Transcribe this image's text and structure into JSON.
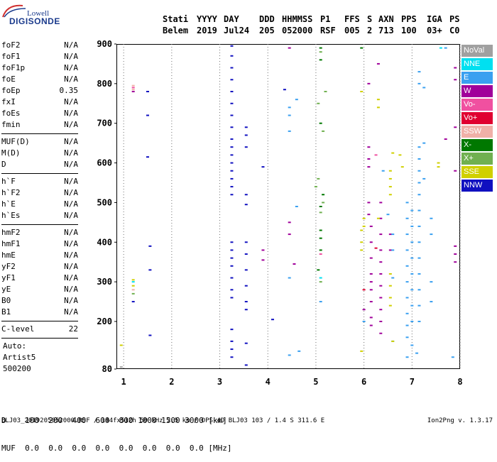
{
  "logo": {
    "line1": "Lowell",
    "line2": "DIGISONDE"
  },
  "header": {
    "labels": [
      "Stati",
      "YYYY",
      "DAY",
      "DDD",
      "HHMMSS",
      "P1",
      "FFS",
      "S",
      "AXN",
      "PPS",
      "IGA",
      "PS"
    ],
    "values": [
      "Belem",
      "2019",
      "Jul24",
      "205",
      "052000",
      "RSF",
      "005",
      "2",
      "713",
      "100",
      "03+",
      "C0"
    ]
  },
  "params_group1": [
    {
      "label": "foF2",
      "value": "N/A"
    },
    {
      "label": "foF1",
      "value": "N/A"
    },
    {
      "label": "foF1p",
      "value": "N/A"
    },
    {
      "label": "foE",
      "value": "N/A"
    },
    {
      "label": "foEp",
      "value": "0.35"
    },
    {
      "label": "fxI",
      "value": "N/A"
    },
    {
      "label": "foEs",
      "value": "N/A"
    },
    {
      "label": "fmin",
      "value": "N/A"
    }
  ],
  "params_group2": [
    {
      "label": "MUF(D)",
      "value": "N/A"
    },
    {
      "label": "M(D)",
      "value": "N/A"
    },
    {
      "label": "D",
      "value": "N/A"
    }
  ],
  "params_group3": [
    {
      "label": "h`F",
      "value": "N/A"
    },
    {
      "label": "h`F2",
      "value": "N/A"
    },
    {
      "label": "h`E",
      "value": "N/A"
    },
    {
      "label": "h`Es",
      "value": "N/A"
    }
  ],
  "params_group4": [
    {
      "label": "hmF2",
      "value": "N/A"
    },
    {
      "label": "hmF1",
      "value": "N/A"
    },
    {
      "label": "hmE",
      "value": "N/A"
    },
    {
      "label": "yF2",
      "value": "N/A"
    },
    {
      "label": "yF1",
      "value": "N/A"
    },
    {
      "label": "yE",
      "value": "N/A"
    },
    {
      "label": "B0",
      "value": "N/A"
    },
    {
      "label": "B1",
      "value": "N/A"
    }
  ],
  "clevel": {
    "label": "C-level",
    "value": "22"
  },
  "auto": {
    "line1": "Auto:",
    "line2": "Artist5",
    "line3": "500200"
  },
  "muf_table": {
    "d_label": "D",
    "d_values": "100  200  400  600  800 1000 1500 3000 [km]",
    "muf_label": "MUF",
    "muf_values": "0.0  0.0  0.0  0.0  0.0  0.0  0.0  0.0 [MHz]"
  },
  "footer": {
    "left": "BLJ03_2019205052000.RSF / 144fx512h 50 kHz 2.5 km / DPS-4D BLJ03 103 / 1.4 S 311.6 E",
    "right": "Ion2Png v. 1.3.17"
  },
  "legend": [
    {
      "label": "NoVal",
      "color": "#a0a0a0"
    },
    {
      "label": "NNE",
      "color": "#00e0f0"
    },
    {
      "label": "E",
      "color": "#3aa0f0"
    },
    {
      "label": "W",
      "color": "#a0009a"
    },
    {
      "label": "Vo-",
      "color": "#f050a0"
    },
    {
      "label": "Vo+",
      "color": "#e00030"
    },
    {
      "label": "SSW",
      "color": "#f0b0a8"
    },
    {
      "label": "X-",
      "color": "#007800"
    },
    {
      "label": "X+",
      "color": "#70b050"
    },
    {
      "label": "SSE",
      "color": "#d0d000"
    },
    {
      "label": "NNW",
      "color": "#1010c0"
    }
  ],
  "chart_data": {
    "type": "scatter",
    "title": "",
    "xlabel": "",
    "ylabel": "",
    "xlim": [
      0.85,
      8.0
    ],
    "ylim": [
      80,
      900
    ],
    "x_ticks": [
      1,
      2,
      3,
      4,
      5,
      6,
      7,
      8
    ],
    "y_ticks": [
      80,
      200,
      300,
      400,
      500,
      600,
      700,
      800,
      900
    ],
    "grid": "vertical dotted at integer MHz",
    "legend_position": "right",
    "series": [
      {
        "name": "NNW",
        "color": "#1010c0",
        "points": [
          [
            3.25,
            895
          ],
          [
            3.25,
            870
          ],
          [
            3.25,
            840
          ],
          [
            3.25,
            810
          ],
          [
            3.25,
            780
          ],
          [
            3.25,
            750
          ],
          [
            3.25,
            720
          ],
          [
            3.25,
            690
          ],
          [
            3.25,
            660
          ],
          [
            3.25,
            640
          ],
          [
            3.25,
            620
          ],
          [
            3.25,
            600
          ],
          [
            3.25,
            580
          ],
          [
            3.25,
            560
          ],
          [
            3.25,
            540
          ],
          [
            3.25,
            520
          ],
          [
            3.25,
            400
          ],
          [
            3.25,
            380
          ],
          [
            3.25,
            360
          ],
          [
            3.25,
            340
          ],
          [
            3.25,
            310
          ],
          [
            3.25,
            280
          ],
          [
            3.25,
            260
          ],
          [
            3.25,
            180
          ],
          [
            3.25,
            150
          ],
          [
            3.25,
            130
          ],
          [
            3.25,
            110
          ],
          [
            3.55,
            690
          ],
          [
            3.55,
            670
          ],
          [
            3.55,
            640
          ],
          [
            3.55,
            520
          ],
          [
            3.55,
            495
          ],
          [
            3.55,
            400
          ],
          [
            3.55,
            370
          ],
          [
            3.55,
            330
          ],
          [
            3.55,
            290
          ],
          [
            3.55,
            250
          ],
          [
            3.55,
            230
          ],
          [
            3.55,
            145
          ],
          [
            3.9,
            590
          ],
          [
            4.1,
            205
          ],
          [
            4.35,
            785
          ],
          [
            1.5,
            780
          ],
          [
            1.5,
            720
          ],
          [
            1.5,
            615
          ],
          [
            1.55,
            390
          ],
          [
            1.55,
            330
          ],
          [
            1.55,
            165
          ],
          [
            1.2,
            250
          ],
          [
            3.55,
            90
          ]
        ]
      },
      {
        "name": "W",
        "color": "#a0009a",
        "points": [
          [
            4.45,
            890
          ],
          [
            3.9,
            380
          ],
          [
            3.9,
            355
          ],
          [
            4.45,
            450
          ],
          [
            4.45,
            420
          ],
          [
            4.55,
            345
          ],
          [
            6.1,
            640
          ],
          [
            6.1,
            610
          ],
          [
            6.1,
            590
          ],
          [
            6.1,
            500
          ],
          [
            6.1,
            470
          ],
          [
            6.15,
            440
          ],
          [
            6.15,
            400
          ],
          [
            6.15,
            360
          ],
          [
            6.15,
            320
          ],
          [
            6.15,
            300
          ],
          [
            6.15,
            280
          ],
          [
            6.15,
            250
          ],
          [
            6.15,
            210
          ],
          [
            6.15,
            190
          ],
          [
            6.35,
            500
          ],
          [
            6.35,
            460
          ],
          [
            6.35,
            420
          ],
          [
            6.35,
            380
          ],
          [
            6.35,
            350
          ],
          [
            6.35,
            320
          ],
          [
            6.35,
            290
          ],
          [
            6.35,
            260
          ],
          [
            6.35,
            230
          ],
          [
            6.35,
            200
          ],
          [
            6.35,
            170
          ],
          [
            6.55,
            420
          ],
          [
            6.55,
            380
          ],
          [
            6.3,
            850
          ],
          [
            6.1,
            800
          ],
          [
            7.7,
            660
          ],
          [
            7.9,
            840
          ],
          [
            7.9,
            810
          ],
          [
            7.9,
            690
          ],
          [
            7.9,
            580
          ],
          [
            7.9,
            390
          ],
          [
            7.9,
            370
          ],
          [
            7.9,
            350
          ],
          [
            1.2,
            780
          ],
          [
            6.0,
            230
          ]
        ]
      },
      {
        "name": "E",
        "color": "#3aa0f0",
        "points": [
          [
            4.45,
            740
          ],
          [
            4.45,
            720
          ],
          [
            4.45,
            680
          ],
          [
            4.6,
            760
          ],
          [
            4.6,
            490
          ],
          [
            4.45,
            310
          ],
          [
            4.45,
            115
          ],
          [
            4.65,
            125
          ],
          [
            6.0,
            200
          ],
          [
            6.4,
            580
          ],
          [
            6.5,
            470
          ],
          [
            6.6,
            420
          ],
          [
            6.6,
            380
          ],
          [
            6.9,
            500
          ],
          [
            6.9,
            460
          ],
          [
            6.9,
            420
          ],
          [
            6.9,
            380
          ],
          [
            6.9,
            340
          ],
          [
            6.9,
            300
          ],
          [
            6.9,
            260
          ],
          [
            6.9,
            220
          ],
          [
            6.9,
            190
          ],
          [
            6.9,
            160
          ],
          [
            6.9,
            110
          ],
          [
            7.0,
            480
          ],
          [
            7.0,
            440
          ],
          [
            7.0,
            400
          ],
          [
            7.0,
            360
          ],
          [
            7.0,
            320
          ],
          [
            7.0,
            280
          ],
          [
            7.0,
            240
          ],
          [
            7.0,
            200
          ],
          [
            7.0,
            140
          ],
          [
            7.15,
            830
          ],
          [
            7.15,
            800
          ],
          [
            7.15,
            640
          ],
          [
            7.15,
            610
          ],
          [
            7.15,
            580
          ],
          [
            7.15,
            550
          ],
          [
            7.15,
            520
          ],
          [
            7.15,
            480
          ],
          [
            7.15,
            440
          ],
          [
            7.15,
            400
          ],
          [
            7.15,
            360
          ],
          [
            7.15,
            320
          ],
          [
            7.15,
            280
          ],
          [
            7.15,
            240
          ],
          [
            7.15,
            200
          ],
          [
            7.25,
            790
          ],
          [
            7.25,
            650
          ],
          [
            7.25,
            560
          ],
          [
            7.4,
            460
          ],
          [
            7.4,
            420
          ],
          [
            7.4,
            300
          ],
          [
            7.4,
            250
          ],
          [
            6.6,
            310
          ],
          [
            6.6,
            150
          ],
          [
            5.1,
            250
          ],
          [
            7.7,
            890
          ],
          [
            7.85,
            110
          ],
          [
            7.1,
            120
          ]
        ]
      },
      {
        "name": "Vo-",
        "color": "#f050a0",
        "points": [
          [
            5.1,
            370
          ],
          [
            1.2,
            790
          ],
          [
            6.25,
            620
          ]
        ]
      },
      {
        "name": "Vo+",
        "color": "#e00030",
        "points": [
          [
            6.25,
            385
          ],
          [
            6.0,
            280
          ]
        ]
      },
      {
        "name": "SSW",
        "color": "#f0b0a8",
        "points": [
          [
            1.2,
            795
          ],
          [
            1.2,
            785
          ],
          [
            1.2,
            280
          ]
        ]
      },
      {
        "name": "X-",
        "color": "#007800",
        "points": [
          [
            5.1,
            890
          ],
          [
            5.1,
            860
          ],
          [
            5.1,
            700
          ],
          [
            5.15,
            520
          ],
          [
            5.1,
            490
          ],
          [
            5.1,
            430
          ],
          [
            5.1,
            410
          ],
          [
            5.1,
            380
          ],
          [
            5.05,
            330
          ],
          [
            5.95,
            890
          ]
        ]
      },
      {
        "name": "X+",
        "color": "#70b050",
        "points": [
          [
            5.1,
            880
          ],
          [
            5.05,
            750
          ],
          [
            5.2,
            780
          ],
          [
            5.15,
            680
          ],
          [
            5.05,
            560
          ],
          [
            5.0,
            540
          ],
          [
            5.15,
            500
          ],
          [
            5.1,
            475
          ],
          [
            5.1,
            300
          ],
          [
            1.2,
            270
          ]
        ]
      },
      {
        "name": "SSE",
        "color": "#d0d000",
        "points": [
          [
            5.95,
            780
          ],
          [
            6.3,
            760
          ],
          [
            6.3,
            740
          ],
          [
            6.55,
            580
          ],
          [
            6.55,
            560
          ],
          [
            6.55,
            540
          ],
          [
            6.55,
            520
          ],
          [
            6.6,
            625
          ],
          [
            6.75,
            620
          ],
          [
            6.8,
            590
          ],
          [
            7.55,
            600
          ],
          [
            7.55,
            590
          ],
          [
            5.95,
            430
          ],
          [
            5.95,
            400
          ],
          [
            5.95,
            380
          ],
          [
            6.55,
            320
          ],
          [
            6.55,
            290
          ],
          [
            6.55,
            260
          ],
          [
            6.55,
            240
          ],
          [
            6.6,
            150
          ],
          [
            6.3,
            460
          ],
          [
            1.2,
            290
          ],
          [
            1.2,
            305
          ],
          [
            0.95,
            140
          ],
          [
            6.0,
            460
          ],
          [
            6.0,
            440
          ],
          [
            5.95,
            125
          ]
        ]
      },
      {
        "name": "NNE",
        "color": "#00e0f0",
        "points": [
          [
            1.2,
            300
          ],
          [
            7.6,
            890
          ],
          [
            5.1,
            310
          ]
        ]
      },
      {
        "name": "NoVal",
        "color": "#a0a0a0",
        "points": [
          [
            0.95,
            85
          ]
        ]
      }
    ]
  }
}
